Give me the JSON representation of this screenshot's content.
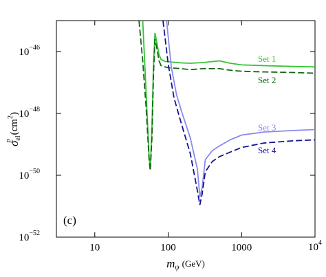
{
  "chart_data": {
    "type": "line",
    "annotation": "(c)",
    "xlabel": {
      "main": "m",
      "sub": "ψ",
      "unit": "(GeV)"
    },
    "ylabel": {
      "main": "σ",
      "sub": "el",
      "sup": "p",
      "unit": "(cm",
      "unit_sup": "2",
      "unit_end": ")"
    },
    "log_x": true,
    "log_y": true,
    "xlim": [
      3,
      10000
    ],
    "ylim": [
      1e-52,
      1e-45
    ],
    "xticks": [
      10,
      100,
      1000,
      {
        "value": 10000,
        "label": "10",
        "sup": "4"
      }
    ],
    "yticks": [
      {
        "value": 1e-52,
        "label": "10",
        "sup": "−52"
      },
      {
        "value": 1e-50,
        "label": "10",
        "sup": "−50"
      },
      {
        "value": 1e-48,
        "label": "10",
        "sup": "−48"
      },
      {
        "value": 1e-46,
        "label": "10",
        "sup": "−46"
      }
    ],
    "series": [
      {
        "name": "Set 1",
        "color": "#33c433",
        "x": [
          45,
          50,
          55,
          57,
          60,
          63,
          66,
          70,
          75,
          80,
          90,
          100,
          150,
          200,
          300,
          500,
          700,
          1000,
          2000,
          5000,
          10000
        ],
        "values": [
          1e-45,
          5e-48,
          4e-50,
          1.6e-50,
          3.2e-49,
          3.2e-47,
          4e-46,
          2e-46,
          7.9e-47,
          5.6e-47,
          4.8e-47,
          4.7e-47,
          4.3e-47,
          4.2e-47,
          4.4e-47,
          5e-47,
          4.2e-47,
          3.7e-47,
          3.5e-47,
          3.3e-47,
          3.2e-47
        ]
      },
      {
        "name": "Set 2",
        "color": "#146614",
        "x": [
          40,
          45,
          50,
          55,
          57,
          60,
          63,
          66,
          70,
          75,
          80,
          90,
          100,
          150,
          200,
          300,
          500,
          700,
          1000,
          2000,
          5000,
          10000
        ],
        "values": [
          1e-45,
          5e-47,
          1.6e-48,
          3.2e-50,
          1.4e-50,
          1.6e-49,
          1.6e-47,
          2.5e-46,
          1.3e-46,
          5e-47,
          3.5e-47,
          3.2e-47,
          3e-47,
          2.8e-47,
          2.6e-47,
          2.8e-47,
          2.8e-47,
          2.5e-47,
          2.3e-47,
          2.2e-47,
          2.1e-47,
          2e-47
        ]
      },
      {
        "name": "Set 3",
        "color": "#8a8aec",
        "x": [
          95,
          110,
          130,
          150,
          200,
          250,
          270,
          290,
          320,
          400,
          500,
          700,
          1000,
          2000,
          5000,
          10000
        ],
        "values": [
          1e-45,
          3.2e-47,
          4e-48,
          1.3e-48,
          1.6e-49,
          1.6e-50,
          2e-51,
          4e-51,
          3.2e-50,
          6.3e-50,
          8.9e-50,
          1.4e-49,
          2e-49,
          2.5e-49,
          2.8e-49,
          3e-49
        ]
      },
      {
        "name": "Set 4",
        "color": "#14148f",
        "x": [
          85,
          100,
          120,
          150,
          200,
          250,
          270,
          290,
          320,
          400,
          500,
          700,
          1000,
          2000,
          5000,
          10000
        ],
        "values": [
          1e-45,
          4e-47,
          3.2e-48,
          5e-49,
          5e-50,
          3.2e-51,
          1.1e-51,
          2.5e-51,
          1.3e-50,
          2.8e-50,
          4e-50,
          5.6e-50,
          7.9e-50,
          1.1e-49,
          1.3e-49,
          1.4e-49
        ]
      }
    ]
  }
}
